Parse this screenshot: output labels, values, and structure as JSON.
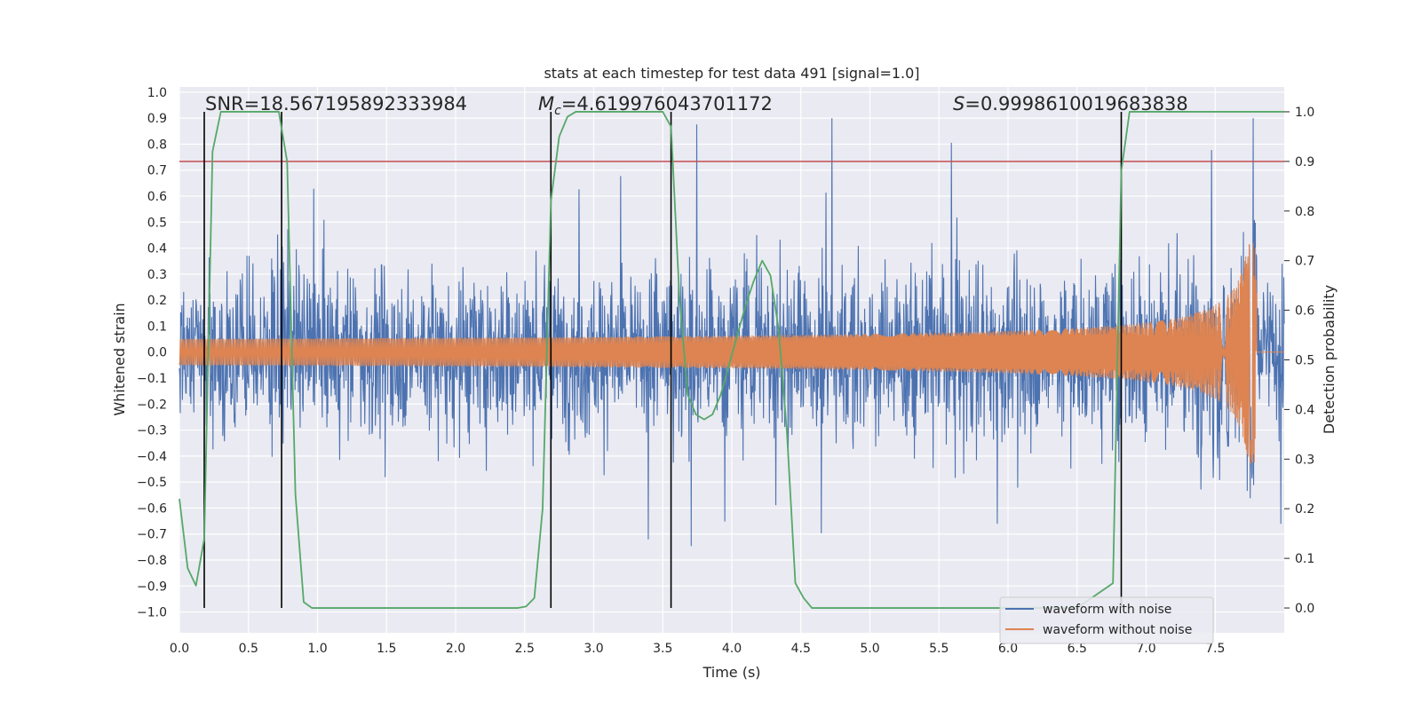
{
  "chart_data": {
    "type": "line",
    "title": "stats at each timestep for test data 491 [signal=1.0]",
    "xlabel": "Time (s)",
    "ylabel_left": "Whitened strain",
    "ylabel_right": "Detection probability",
    "xlim": [
      0.0,
      8.0
    ],
    "ylim_left": [
      -1.08,
      1.02
    ],
    "ylim_right": [
      -0.05,
      1.05
    ],
    "x_ticks": [
      "0.0",
      "0.5",
      "1.0",
      "1.5",
      "2.0",
      "2.5",
      "3.0",
      "3.5",
      "4.0",
      "4.5",
      "5.0",
      "5.5",
      "6.0",
      "6.5",
      "7.0",
      "7.5"
    ],
    "y_ticks_left": [
      "1.0",
      "0.9",
      "0.8",
      "0.7",
      "0.6",
      "0.5",
      "0.4",
      "0.3",
      "0.2",
      "0.1",
      "0.0",
      "−0.1",
      "−0.2",
      "−0.3",
      "−0.4",
      "−0.5",
      "−0.6",
      "−0.7",
      "−0.8",
      "−0.9",
      "−1.0"
    ],
    "y_ticks_right": [
      "1.0",
      "0.9",
      "0.8",
      "0.7",
      "0.6",
      "0.5",
      "0.4",
      "0.3",
      "0.2",
      "0.1",
      "0.0"
    ],
    "annotations": {
      "snr": "SNR=18.567195892333984",
      "mc_symbol": "M",
      "mc_sub": "c",
      "mc_value": "=4.619976043701172",
      "s_symbol": "S",
      "s_value": "=0.9998610019683838"
    },
    "threshold_line": {
      "axis": "right",
      "value": 0.9,
      "color": "#c44e52"
    },
    "vertical_lines": [
      0.18,
      0.74,
      2.69,
      3.56,
      6.82
    ],
    "series": [
      {
        "name": "waveform with noise",
        "color": "#4c72b0",
        "description": "noisy whitened strain, amplitude mostly within ±0.6"
      },
      {
        "name": "waveform without noise",
        "color": "#dd8452",
        "description": "chirp, amplitude growing from 0.03 to 0.43, merger near 7.8 s"
      },
      {
        "name": "Detection probability",
        "color": "#55a868",
        "axis": "right",
        "x": [
          0.0,
          0.06,
          0.12,
          0.18,
          0.24,
          0.3,
          0.36,
          0.42,
          0.48,
          0.54,
          0.6,
          0.66,
          0.72,
          0.78,
          0.84,
          0.9,
          0.96,
          1.02,
          1.5,
          2.0,
          2.45,
          2.51,
          2.57,
          2.63,
          2.69,
          2.75,
          2.81,
          2.87,
          2.93,
          3.0,
          3.5,
          3.56,
          3.62,
          3.68,
          3.74,
          3.8,
          3.86,
          3.92,
          3.98,
          4.04,
          4.1,
          4.16,
          4.22,
          4.28,
          4.34,
          4.4,
          4.46,
          4.52,
          4.58,
          4.64,
          5.0,
          5.5,
          6.0,
          6.5,
          6.76,
          6.82,
          6.88,
          6.94,
          7.0,
          7.5,
          8.0
        ],
        "values": [
          0.22,
          0.08,
          0.045,
          0.14,
          0.92,
          1.0,
          1.0,
          1.0,
          1.0,
          1.0,
          1.0,
          1.0,
          1.0,
          0.9,
          0.23,
          0.012,
          0.0,
          0.0,
          0.0,
          0.0,
          0.0,
          0.003,
          0.02,
          0.2,
          0.82,
          0.95,
          0.99,
          1.0,
          1.0,
          1.0,
          1.0,
          0.97,
          0.63,
          0.43,
          0.39,
          0.38,
          0.39,
          0.43,
          0.49,
          0.55,
          0.61,
          0.66,
          0.7,
          0.67,
          0.56,
          0.35,
          0.05,
          0.02,
          0.0,
          0.0,
          0.0,
          0.0,
          0.0,
          0.0,
          0.05,
          0.88,
          1.0,
          1.0,
          1.0,
          1.0,
          1.0
        ]
      }
    ],
    "legend_location": "lower-right"
  }
}
